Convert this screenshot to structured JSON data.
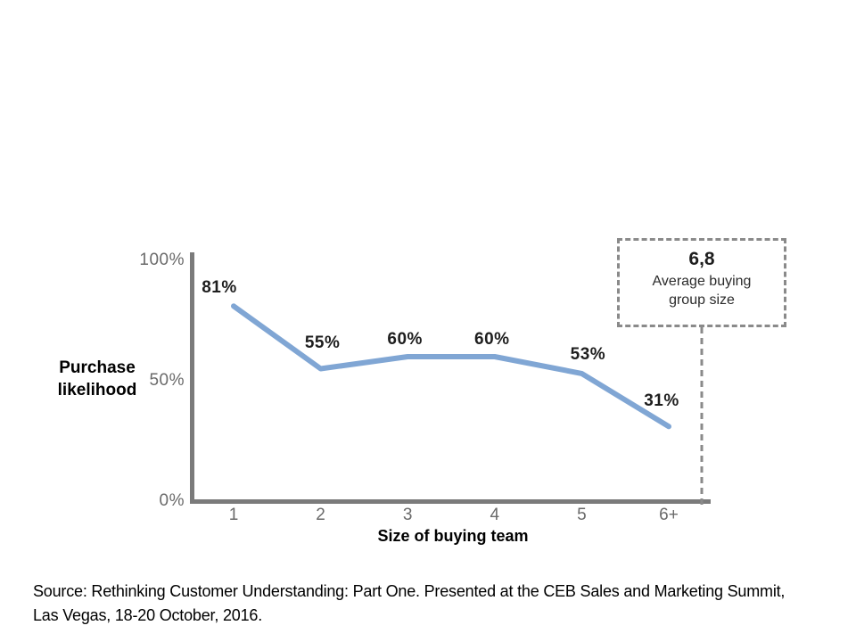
{
  "chart_data": {
    "type": "line",
    "categories": [
      "1",
      "2",
      "3",
      "4",
      "5",
      "6+"
    ],
    "values": [
      81,
      55,
      60,
      60,
      53,
      31
    ],
    "point_labels": [
      "81%",
      "55%",
      "60%",
      "60%",
      "53%",
      "31%"
    ],
    "xlabel": "Size of buying team",
    "ylabel": "Purchase likelihood",
    "y_ticks": [
      {
        "value": 100,
        "label": "100%"
      },
      {
        "value": 50,
        "label": "50%"
      },
      {
        "value": 0,
        "label": "0%"
      }
    ],
    "ylim": [
      0,
      100
    ],
    "grid": "off",
    "line_color": "#80a6d4",
    "axis_color": "#7b7b7b",
    "dash_color": "#8a8a8a",
    "data_label_color": "#1e1e1e",
    "tick_label_color": "#6a6a6a",
    "annotation": {
      "value": "6,8",
      "label": "Average buying group size"
    }
  },
  "source": {
    "line1": "Source: Rethinking Customer Understanding: Part One. Presented at the CEB Sales and Marketing Summit,",
    "line2": "Las Vegas, 18-20 October, 2016."
  }
}
